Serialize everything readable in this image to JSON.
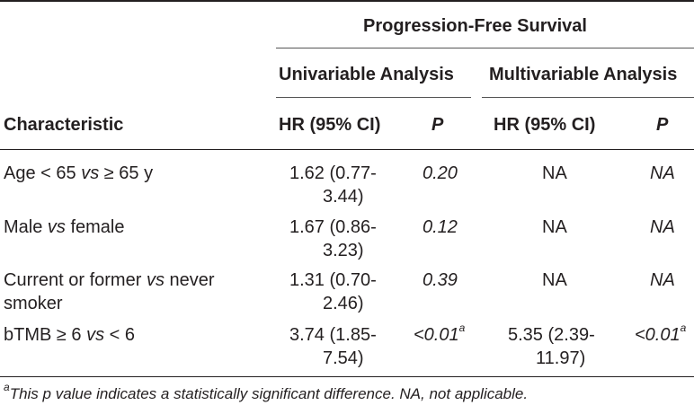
{
  "header": {
    "group_title": "Progression-Free Survival",
    "univariable": "Univariable Analysis",
    "multivariable": "Multivariable Analysis",
    "characteristic": "Characteristic",
    "hr_ci_uni": "HR (95% CI)",
    "p_uni": "P",
    "hr_ci_multi": "HR (95% CI)",
    "p_multi": "P"
  },
  "rows": [
    {
      "char_a": "Age < 65 ",
      "char_vs": "vs",
      "char_b": " ≥ 65 y",
      "uni_hr_1": "1.62 (0.77-",
      "uni_hr_2": "3.44)",
      "uni_p": "0.20",
      "uni_p_sup": "",
      "multi_hr_1": "NA",
      "multi_hr_2": "",
      "multi_p": "NA",
      "multi_p_sup": ""
    },
    {
      "char_a": "Male ",
      "char_vs": "vs",
      "char_b": " female",
      "uni_hr_1": "1.67 (0.86-",
      "uni_hr_2": "3.23)",
      "uni_p": "0.12",
      "uni_p_sup": "",
      "multi_hr_1": "NA",
      "multi_hr_2": "",
      "multi_p": "NA",
      "multi_p_sup": ""
    },
    {
      "char_a": "Current or former ",
      "char_vs": "vs",
      "char_b": " never",
      "char_line2": "smoker",
      "uni_hr_1": "1.31 (0.70-",
      "uni_hr_2": "2.46)",
      "uni_p": "0.39",
      "uni_p_sup": "",
      "multi_hr_1": "NA",
      "multi_hr_2": "",
      "multi_p": "NA",
      "multi_p_sup": ""
    },
    {
      "char_a": "bTMB ≥ 6 ",
      "char_vs": "vs",
      "char_b": " < 6",
      "uni_hr_1": "3.74 (1.85-",
      "uni_hr_2": "7.54)",
      "uni_p": "<0.01",
      "uni_p_sup": "a",
      "multi_hr_1": "5.35 (2.39-",
      "multi_hr_2": "11.97)",
      "multi_p": "<0.01",
      "multi_p_sup": "a"
    }
  ],
  "footnote": {
    "marker": "a",
    "text": "This p value indicates a statistically significant difference. NA, not applicable."
  }
}
